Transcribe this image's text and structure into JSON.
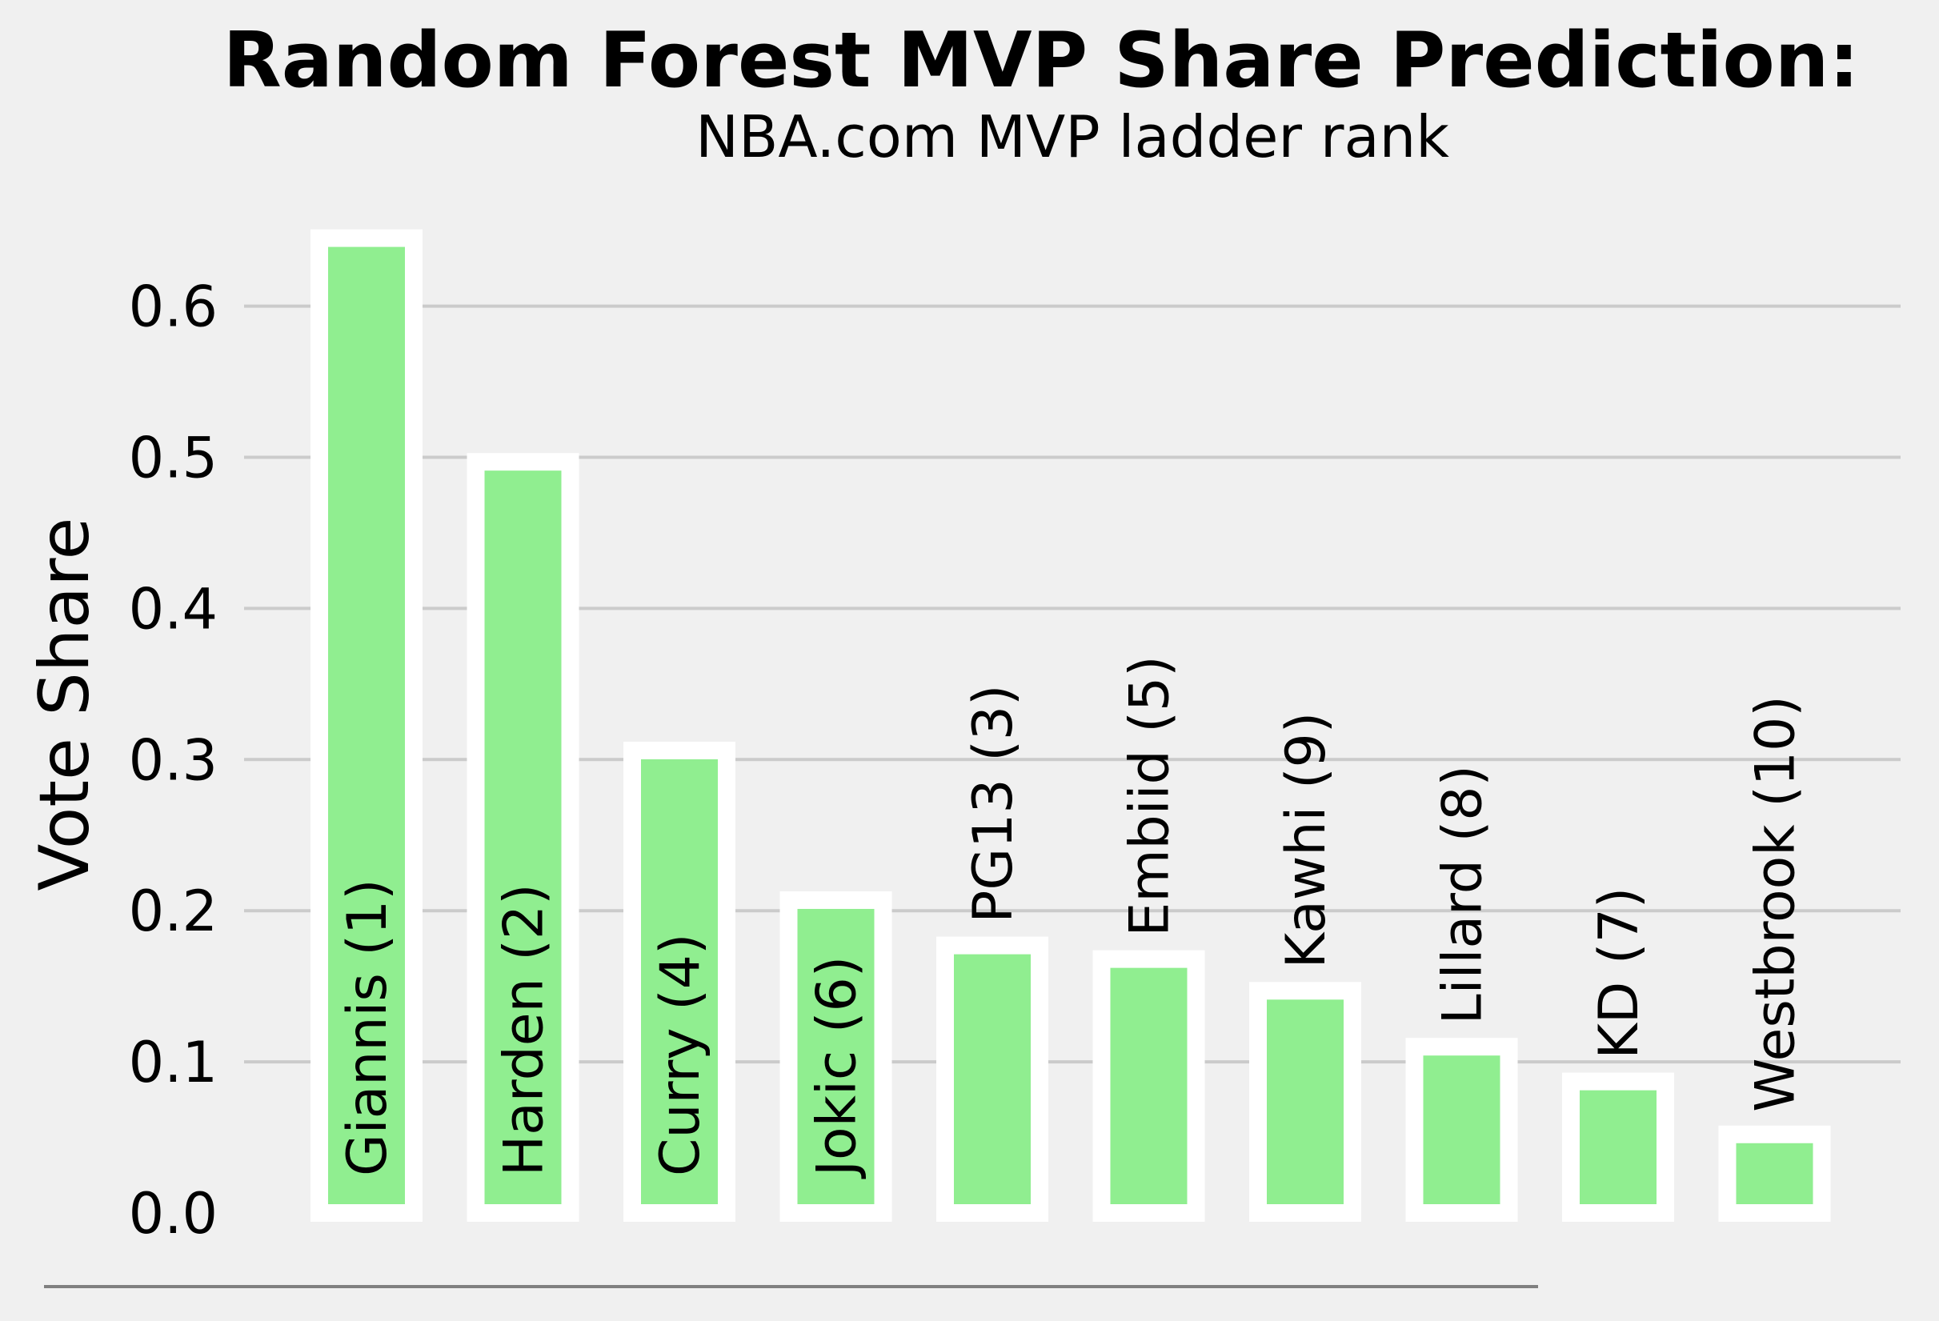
{
  "chart_data": {
    "type": "bar",
    "title": "Random Forest MVP Share Prediction:",
    "subtitle": "NBA.com MVP ladder rank",
    "xlabel": "",
    "ylabel": "Vote Share",
    "ylim": [
      0,
      0.66
    ],
    "yticks": [
      "0.0",
      "0.1",
      "0.2",
      "0.3",
      "0.4",
      "0.5",
      "0.6"
    ],
    "grid": "y",
    "bar_color": "#90ee90",
    "bar_edge_color": "#ffffff",
    "background": "#f0f0f0",
    "categories": [
      "Giannis (1)",
      "Harden (2)",
      "Curry (4)",
      "Jokic (6)",
      "PG13 (3)",
      "Embiid (5)",
      "Kawhi (9)",
      "Lillard (8)",
      "KD (7)",
      "Westbrook (10)"
    ],
    "values": [
      0.645,
      0.497,
      0.306,
      0.207,
      0.177,
      0.168,
      0.147,
      0.11,
      0.087,
      0.052
    ]
  }
}
